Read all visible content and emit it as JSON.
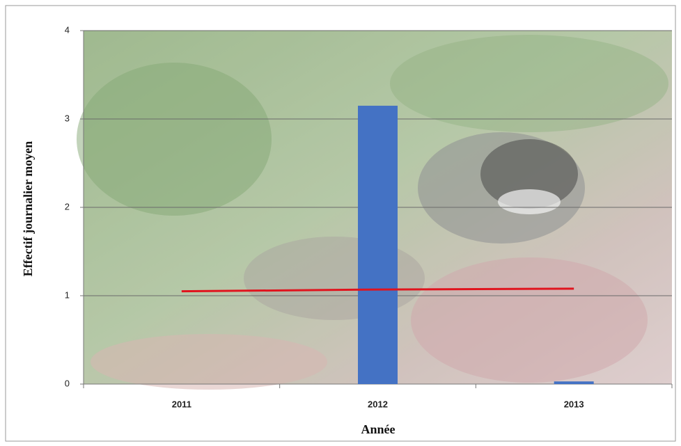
{
  "chart_data": {
    "type": "bar",
    "x_label": "Année",
    "y_label": "Effectif journalier moyen",
    "categories": [
      "2011",
      "2012",
      "2013"
    ],
    "series": [
      {
        "type": "bar",
        "color": "#4472c4",
        "values": [
          0,
          3.15,
          0.03
        ]
      },
      {
        "type": "line",
        "color": "#e0141e",
        "values": [
          1.05,
          1.07,
          1.08
        ]
      }
    ],
    "ylim": [
      0,
      4
    ],
    "yticks": [
      0,
      1,
      2,
      3,
      4
    ],
    "grid": true
  }
}
